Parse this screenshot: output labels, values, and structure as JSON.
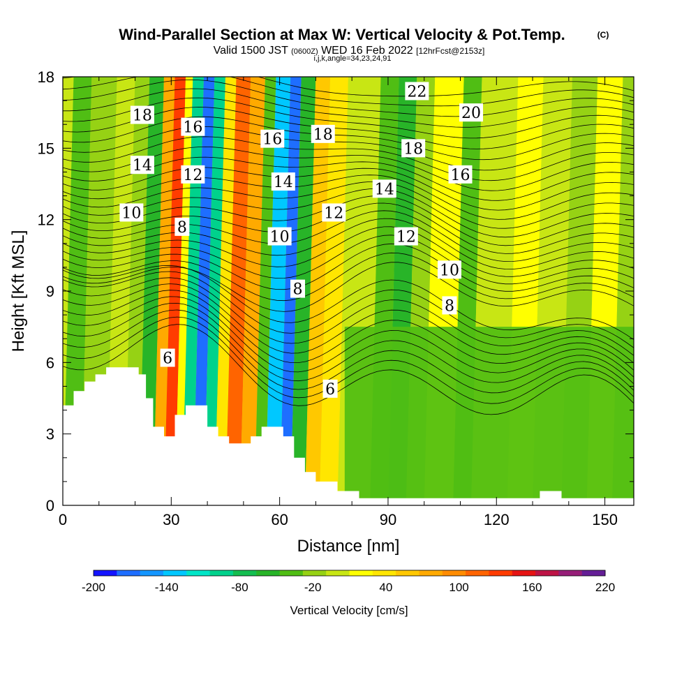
{
  "header": {
    "title": "Wind-Parallel Section at Max W: Vertical Velocity & Pot.Temp.",
    "copyright": "(C)",
    "valid_prefix": "Valid 1500 JST",
    "valid_utc": "(0600Z)",
    "valid_date": "WED 16 Feb 2022",
    "forecast": "[12hrFcst@2153z]",
    "indices": "i,j,k,angle=34,23,24,91"
  },
  "chart_data": {
    "type": "heatmap",
    "xlabel": "Distance [nm]",
    "ylabel": "Height [Kft MSL]",
    "xlim": [
      0,
      158
    ],
    "ylim": [
      0,
      18
    ],
    "xticks": [
      0,
      30,
      60,
      90,
      120,
      150
    ],
    "yticks": [
      0,
      3,
      6,
      9,
      12,
      15,
      18
    ],
    "colorbar": {
      "label": "Vertical Velocity [cm/s]",
      "min": -200,
      "max": 220,
      "step": 20,
      "tick_labels": [
        "-200",
        "-140",
        "-80",
        "-20",
        "40",
        "100",
        "160",
        "220"
      ],
      "tick_values": [
        -200,
        -140,
        -80,
        -20,
        40,
        100,
        160,
        220
      ],
      "colors": [
        "#1414ff",
        "#1e6eff",
        "#1496ff",
        "#00c8ff",
        "#00e6c8",
        "#00d28c",
        "#14be50",
        "#28b428",
        "#50be14",
        "#96d214",
        "#c8e614",
        "#ffff00",
        "#ffe600",
        "#ffc800",
        "#ffaa00",
        "#ff8c00",
        "#ff6400",
        "#ff3c00",
        "#e61414",
        "#be1446",
        "#961e78",
        "#641e96"
      ]
    },
    "vertical_velocity_columns": [
      {
        "x_from": 0,
        "x_to": 5,
        "value": -35
      },
      {
        "x_from": 5,
        "x_to": 12,
        "value": -5
      },
      {
        "x_from": 12,
        "x_to": 17,
        "value": 15
      },
      {
        "x_from": 17,
        "x_to": 21,
        "value": -15
      },
      {
        "x_from": 21,
        "x_to": 25,
        "value": -50
      },
      {
        "x_from": 25,
        "x_to": 28,
        "value": 90
      },
      {
        "x_from": 28,
        "x_to": 31,
        "value": 150
      },
      {
        "x_from": 31,
        "x_to": 33,
        "value": 30
      },
      {
        "x_from": 33,
        "x_to": 36,
        "value": -90
      },
      {
        "x_from": 36,
        "x_to": 39,
        "value": -180
      },
      {
        "x_from": 39,
        "x_to": 42,
        "value": -100
      },
      {
        "x_from": 42,
        "x_to": 45,
        "value": 40
      },
      {
        "x_from": 45,
        "x_to": 49,
        "value": 130
      },
      {
        "x_from": 49,
        "x_to": 53,
        "value": 80
      },
      {
        "x_from": 53,
        "x_to": 56,
        "value": -40
      },
      {
        "x_from": 56,
        "x_to": 60,
        "value": -130
      },
      {
        "x_from": 60,
        "x_to": 63,
        "value": -170
      },
      {
        "x_from": 63,
        "x_to": 67,
        "value": -60
      },
      {
        "x_from": 67,
        "x_to": 71,
        "value": 70
      },
      {
        "x_from": 71,
        "x_to": 76,
        "value": 40
      },
      {
        "x_from": 76,
        "x_to": 85,
        "value": 10
      },
      {
        "x_from": 85,
        "x_to": 90,
        "value": -40
      },
      {
        "x_from": 90,
        "x_to": 95,
        "value": -60
      },
      {
        "x_from": 95,
        "x_to": 100,
        "value": -15
      },
      {
        "x_from": 100,
        "x_to": 108,
        "value": 20
      },
      {
        "x_from": 108,
        "x_to": 113,
        "value": -30
      },
      {
        "x_from": 113,
        "x_to": 123,
        "value": 10
      },
      {
        "x_from": 123,
        "x_to": 130,
        "value": 30
      },
      {
        "x_from": 130,
        "x_to": 138,
        "value": 5
      },
      {
        "x_from": 138,
        "x_to": 145,
        "value": -15
      },
      {
        "x_from": 145,
        "x_to": 152,
        "value": 20
      },
      {
        "x_from": 152,
        "x_to": 158,
        "value": -10
      }
    ],
    "low_level_region": {
      "x_from": 78,
      "x_to": 158,
      "z_below": 7.5,
      "value": -30
    },
    "terrain": [
      [
        0,
        4.2
      ],
      [
        3,
        4.2
      ],
      [
        3,
        4.8
      ],
      [
        6,
        4.8
      ],
      [
        6,
        5.2
      ],
      [
        9,
        5.2
      ],
      [
        9,
        5.5
      ],
      [
        12,
        5.5
      ],
      [
        12,
        5.8
      ],
      [
        21,
        5.8
      ],
      [
        21,
        5.5
      ],
      [
        23,
        5.5
      ],
      [
        23,
        4.5
      ],
      [
        25,
        4.5
      ],
      [
        25,
        3.3
      ],
      [
        28,
        3.3
      ],
      [
        28,
        2.9
      ],
      [
        31,
        2.9
      ],
      [
        31,
        3.8
      ],
      [
        34,
        3.8
      ],
      [
        34,
        4.2
      ],
      [
        40,
        4.2
      ],
      [
        40,
        3.3
      ],
      [
        43,
        3.3
      ],
      [
        43,
        2.9
      ],
      [
        46,
        2.9
      ],
      [
        46,
        2.6
      ],
      [
        52,
        2.6
      ],
      [
        52,
        2.9
      ],
      [
        55,
        2.9
      ],
      [
        55,
        3.3
      ],
      [
        61,
        3.3
      ],
      [
        61,
        2.9
      ],
      [
        64,
        2.9
      ],
      [
        64,
        2.0
      ],
      [
        67,
        2.0
      ],
      [
        67,
        1.4
      ],
      [
        70,
        1.4
      ],
      [
        70,
        1.0
      ],
      [
        76,
        1.0
      ],
      [
        76,
        0.6
      ],
      [
        82,
        0.6
      ],
      [
        82,
        0.3
      ],
      [
        132,
        0.3
      ],
      [
        132,
        0.6
      ],
      [
        138,
        0.6
      ],
      [
        138,
        0.3
      ],
      [
        158,
        0.3
      ],
      [
        158,
        0
      ],
      [
        0,
        0
      ]
    ],
    "theta_contour_labels": [
      {
        "text": "18",
        "x": 22,
        "y": 16.4
      },
      {
        "text": "14",
        "x": 22,
        "y": 14.3
      },
      {
        "text": "10",
        "x": 19,
        "y": 12.3
      },
      {
        "text": "8",
        "x": 33,
        "y": 11.7
      },
      {
        "text": "12",
        "x": 36,
        "y": 13.9
      },
      {
        "text": "16",
        "x": 36,
        "y": 15.9
      },
      {
        "text": "6",
        "x": 29,
        "y": 6.2
      },
      {
        "text": "16",
        "x": 58,
        "y": 15.4
      },
      {
        "text": "14",
        "x": 61,
        "y": 13.6
      },
      {
        "text": "10",
        "x": 60,
        "y": 11.3
      },
      {
        "text": "8",
        "x": 65,
        "y": 9.1
      },
      {
        "text": "18",
        "x": 72,
        "y": 15.6
      },
      {
        "text": "12",
        "x": 75,
        "y": 12.3
      },
      {
        "text": "6",
        "x": 74,
        "y": 4.9
      },
      {
        "text": "22",
        "x": 98,
        "y": 17.4
      },
      {
        "text": "20",
        "x": 113,
        "y": 16.5
      },
      {
        "text": "18",
        "x": 97,
        "y": 15.0
      },
      {
        "text": "16",
        "x": 110,
        "y": 13.9
      },
      {
        "text": "14",
        "x": 89,
        "y": 13.3
      },
      {
        "text": "12",
        "x": 95,
        "y": 11.3
      },
      {
        "text": "10",
        "x": 107,
        "y": 9.9
      },
      {
        "text": "8",
        "x": 107,
        "y": 8.4
      }
    ]
  }
}
